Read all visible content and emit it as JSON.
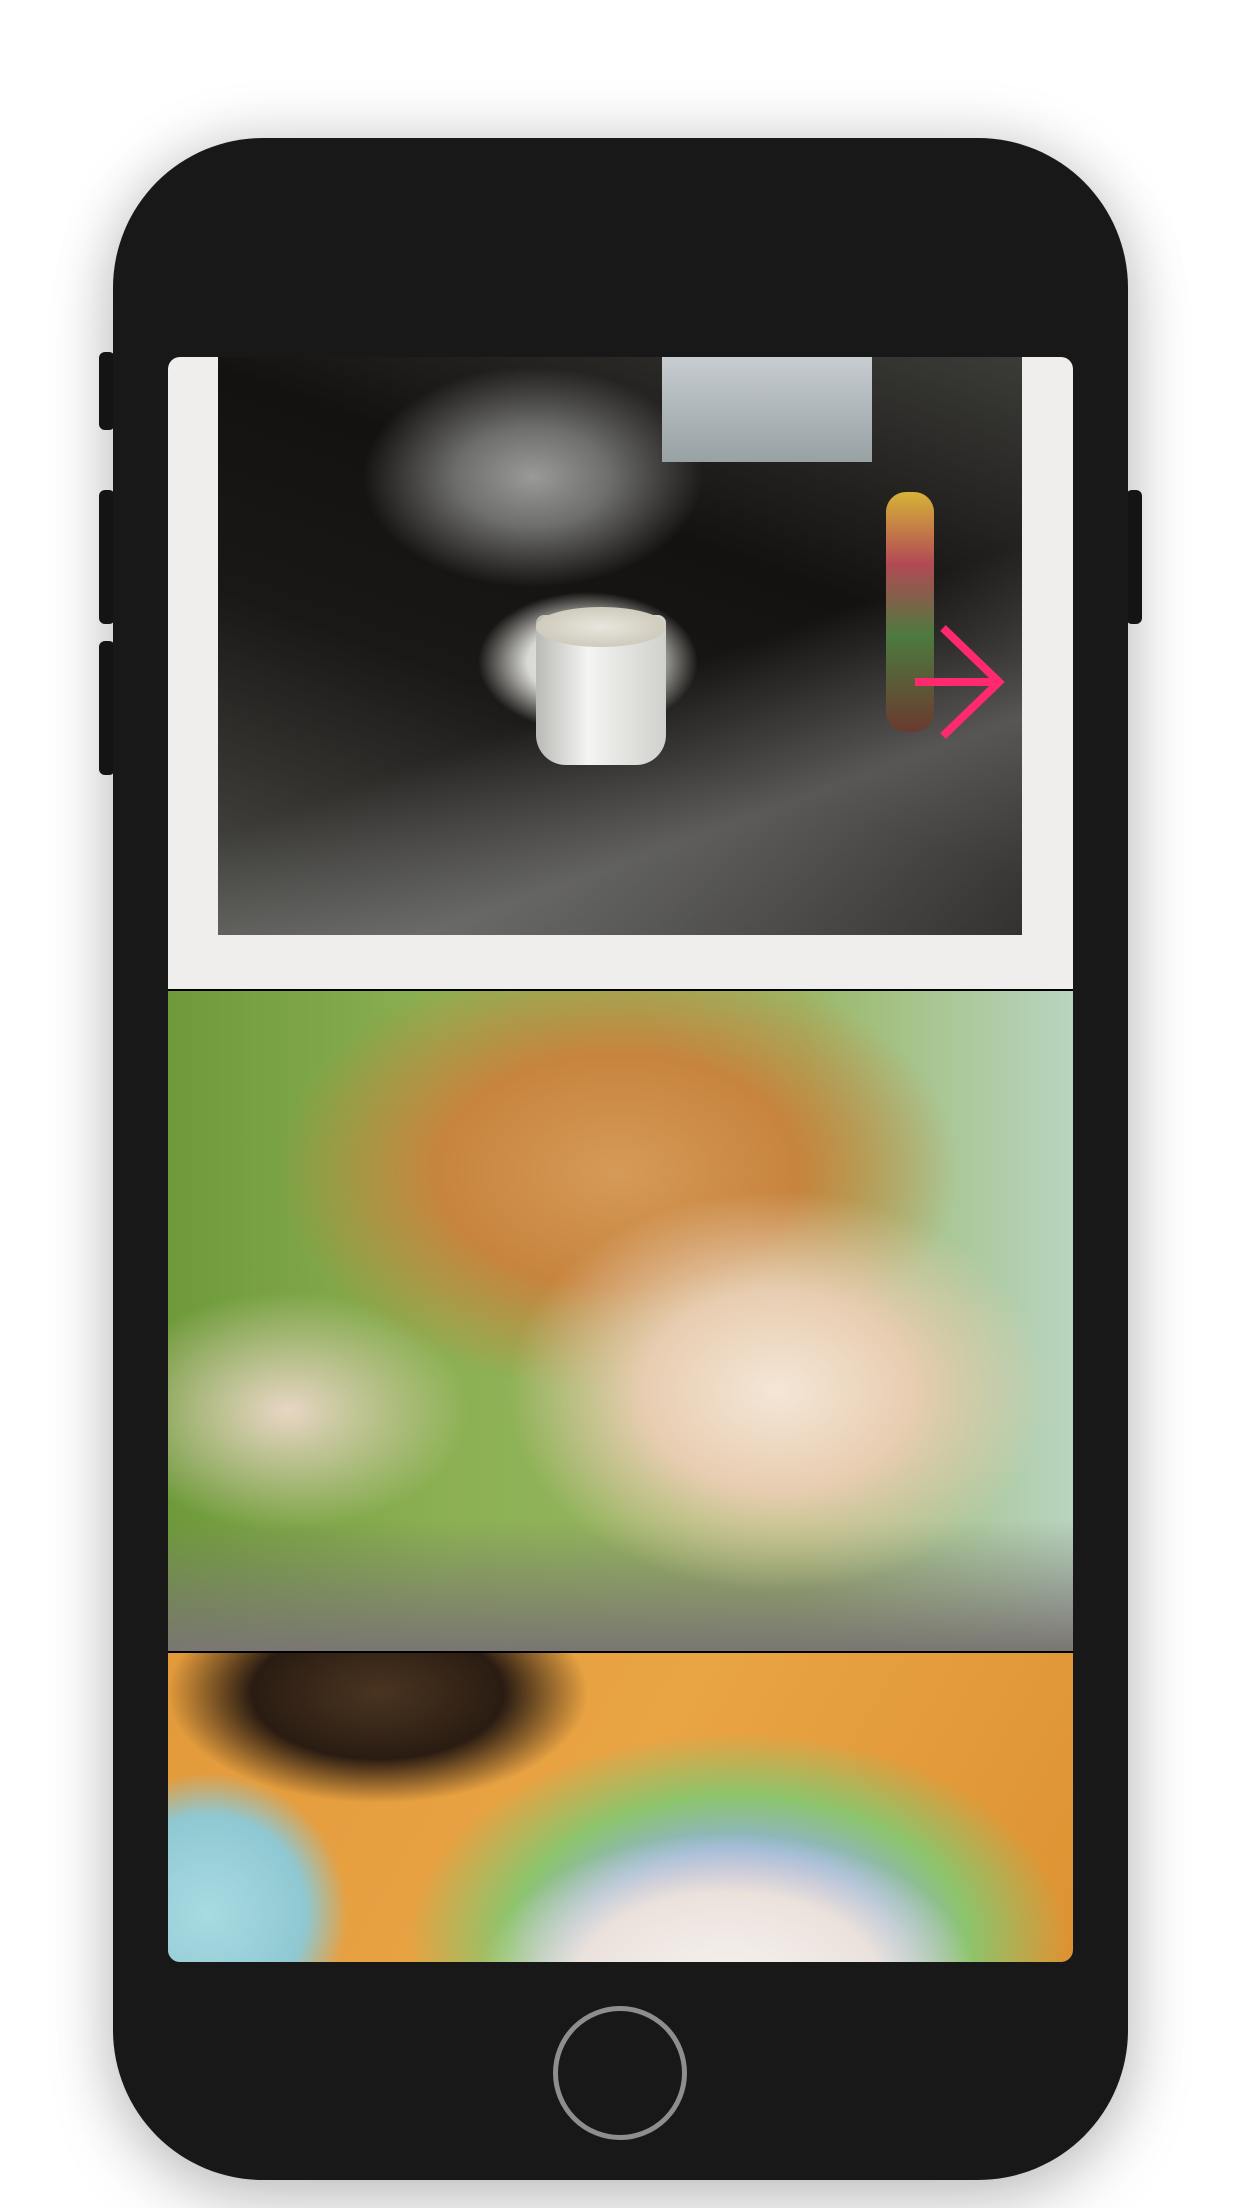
{
  "device": {
    "body_color": "#181818",
    "home_button": {
      "icon": "circle-home-icon",
      "border_color": "#8e8e8e"
    }
  },
  "gallery": {
    "photos": [
      {
        "subject": "kitten-drinking-from-cup"
      },
      {
        "subject": "two-orange-kittens-playing"
      },
      {
        "subject": "white-kitten-on-cushion"
      }
    ],
    "next_control": {
      "icon": "chevron-right-arrow-icon",
      "color": "#ff2a6d"
    }
  }
}
